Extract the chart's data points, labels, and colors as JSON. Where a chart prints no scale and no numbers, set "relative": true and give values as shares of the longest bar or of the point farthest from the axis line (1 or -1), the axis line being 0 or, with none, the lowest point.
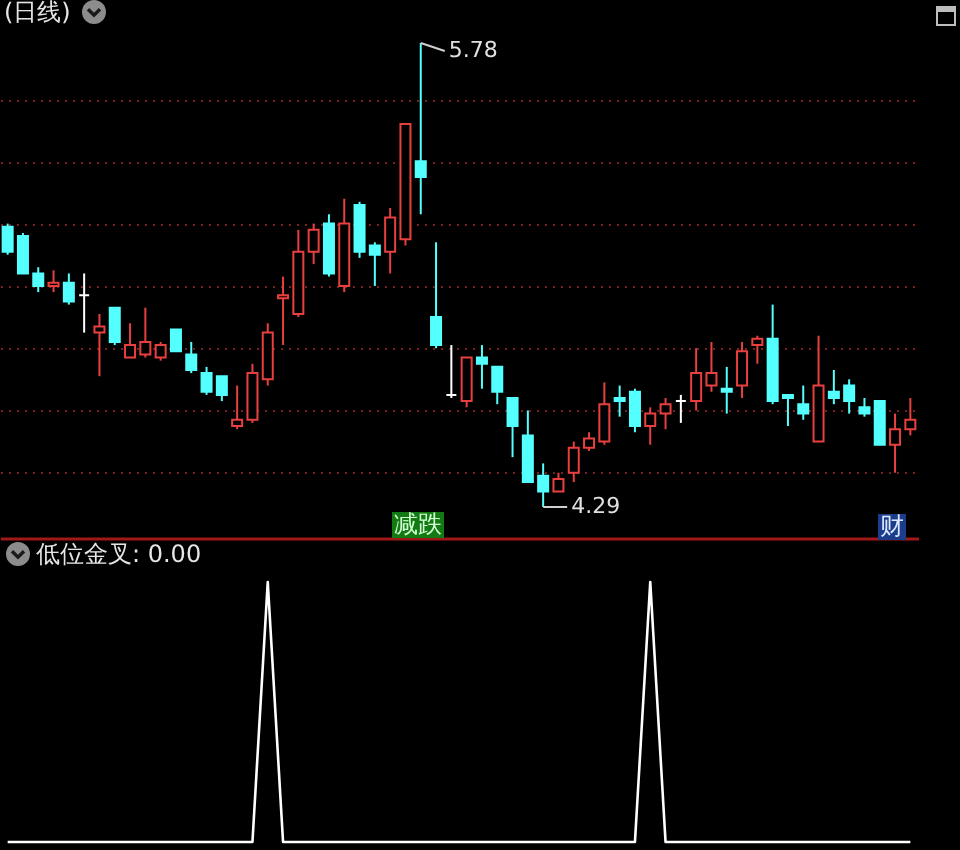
{
  "chart_data": [
    {
      "type": "candlestick",
      "title": "(日线)",
      "categories": [
        null,
        null,
        null,
        null,
        null,
        null,
        null,
        null,
        null,
        null,
        null,
        null,
        null,
        null,
        null,
        null,
        null,
        null,
        null,
        null,
        null,
        null,
        null,
        null,
        null,
        null,
        null,
        null,
        null,
        null,
        null,
        null,
        null,
        null,
        null,
        null,
        null,
        null,
        null,
        null,
        null,
        null,
        null,
        null,
        null,
        null,
        null,
        null,
        null,
        null,
        null,
        null,
        null,
        null,
        null,
        null,
        null,
        null,
        null,
        null
      ],
      "ohlc": [
        [
          5.19,
          5.2,
          5.1,
          5.11
        ],
        [
          5.16,
          5.17,
          5.04,
          5.04
        ],
        [
          5.04,
          5.06,
          4.98,
          5.0
        ],
        [
          5.0,
          5.05,
          4.98,
          5.01
        ],
        [
          5.01,
          5.04,
          4.94,
          4.95
        ],
        [
          4.97,
          5.04,
          4.85,
          4.97
        ],
        [
          4.85,
          4.91,
          4.71,
          4.87
        ],
        [
          4.93,
          4.93,
          4.81,
          4.82
        ],
        [
          4.77,
          4.88,
          4.77,
          4.81
        ],
        [
          4.78,
          4.93,
          4.77,
          4.82
        ],
        [
          4.77,
          4.82,
          4.76,
          4.81
        ],
        [
          4.86,
          4.86,
          4.79,
          4.79
        ],
        [
          4.78,
          4.82,
          4.72,
          4.73
        ],
        [
          4.72,
          4.74,
          4.65,
          4.66
        ],
        [
          4.71,
          4.71,
          4.63,
          4.65
        ],
        [
          4.55,
          4.68,
          4.54,
          4.57
        ],
        [
          4.57,
          4.75,
          4.56,
          4.72
        ],
        [
          4.7,
          4.88,
          4.68,
          4.85
        ],
        [
          4.96,
          5.03,
          4.81,
          4.97
        ],
        [
          4.91,
          5.18,
          4.9,
          5.11
        ],
        [
          5.11,
          5.2,
          5.07,
          5.18
        ],
        [
          5.2,
          5.23,
          5.03,
          5.04
        ],
        [
          5.0,
          5.28,
          4.98,
          5.2
        ],
        [
          5.26,
          5.27,
          5.09,
          5.11
        ],
        [
          5.13,
          5.14,
          5.0,
          5.1
        ],
        [
          5.11,
          5.25,
          5.04,
          5.22
        ],
        [
          5.15,
          5.52,
          5.13,
          5.52
        ],
        [
          5.4,
          5.78,
          5.23,
          5.35
        ],
        [
          4.9,
          5.14,
          4.8,
          4.81
        ],
        [
          4.65,
          4.81,
          4.64,
          4.65
        ],
        [
          4.63,
          4.77,
          4.61,
          4.77
        ],
        [
          4.77,
          4.81,
          4.67,
          4.75
        ],
        [
          4.74,
          4.74,
          4.62,
          4.66
        ],
        [
          4.64,
          4.64,
          4.45,
          4.55
        ],
        [
          4.52,
          4.6,
          4.37,
          4.37
        ],
        [
          4.39,
          4.43,
          4.29,
          4.34
        ],
        [
          4.34,
          4.4,
          4.34,
          4.38
        ],
        [
          4.4,
          4.5,
          4.37,
          4.48
        ],
        [
          4.48,
          4.53,
          4.47,
          4.51
        ],
        [
          4.5,
          4.69,
          4.49,
          4.62
        ],
        [
          4.64,
          4.68,
          4.58,
          4.63
        ],
        [
          4.66,
          4.67,
          4.53,
          4.55
        ],
        [
          4.55,
          4.61,
          4.49,
          4.59
        ],
        [
          4.59,
          4.64,
          4.54,
          4.62
        ],
        [
          4.63,
          4.65,
          4.56,
          4.63
        ],
        [
          4.63,
          4.8,
          4.6,
          4.72
        ],
        [
          4.68,
          4.82,
          4.66,
          4.72
        ],
        [
          4.67,
          4.74,
          4.59,
          4.66
        ],
        [
          4.68,
          4.82,
          4.64,
          4.79
        ],
        [
          4.81,
          4.84,
          4.75,
          4.83
        ],
        [
          4.83,
          4.94,
          4.62,
          4.63
        ],
        [
          4.65,
          4.65,
          4.55,
          4.64
        ],
        [
          4.62,
          4.68,
          4.57,
          4.59
        ],
        [
          4.5,
          4.84,
          4.5,
          4.68
        ],
        [
          4.66,
          4.73,
          4.62,
          4.64
        ],
        [
          4.68,
          4.7,
          4.59,
          4.63
        ],
        [
          4.61,
          4.64,
          4.58,
          4.59
        ],
        [
          4.63,
          4.63,
          4.49,
          4.49
        ],
        [
          4.49,
          4.59,
          4.4,
          4.54
        ],
        [
          4.54,
          4.64,
          4.52,
          4.57
        ]
      ],
      "colors": [
        "#54ffff",
        "#54ffff",
        "#54ffff",
        "#e8403f",
        "#54ffff",
        "#ffffff",
        "#e8403f",
        "#54ffff",
        "#e8403f",
        "#e8403f",
        "#e8403f",
        "#54ffff",
        "#54ffff",
        "#54ffff",
        "#54ffff",
        "#e8403f",
        "#e8403f",
        "#e8403f",
        "#e8403f",
        "#e8403f",
        "#e8403f",
        "#54ffff",
        "#e8403f",
        "#54ffff",
        "#54ffff",
        "#e8403f",
        "#e8403f",
        "#54ffff",
        "#54ffff",
        "#ffffff",
        "#e8403f",
        "#54ffff",
        "#54ffff",
        "#54ffff",
        "#54ffff",
        "#54ffff",
        "#e8403f",
        "#e8403f",
        "#e8403f",
        "#e8403f",
        "#54ffff",
        "#54ffff",
        "#e8403f",
        "#e8403f",
        "#ffffff",
        "#e8403f",
        "#e8403f",
        "#54ffff",
        "#e8403f",
        "#e8403f",
        "#54ffff",
        "#54ffff",
        "#54ffff",
        "#e8403f",
        "#54ffff",
        "#54ffff",
        "#54ffff",
        "#54ffff",
        "#e8403f",
        "#e8403f"
      ],
      "yticks": [
        {
          "value": 4.4,
          "label": null
        },
        {
          "value": 4.6,
          "label": null
        },
        {
          "value": 4.8,
          "label": null
        },
        {
          "value": 5.0,
          "label": null
        },
        {
          "value": 5.2,
          "label": null
        },
        {
          "value": 5.4,
          "label": null
        },
        {
          "value": 5.6,
          "label": null
        }
      ],
      "grid": "y",
      "tick_labels": false,
      "annotations": [
        "5.78",
        "4.29",
        "减跌",
        "财"
      ]
    },
    {
      "type": "line",
      "title": "低位金叉: 0.00",
      "categories": [
        null,
        null,
        null,
        null,
        null,
        null,
        null,
        null,
        null,
        null,
        null,
        null,
        null,
        null,
        null,
        null,
        null,
        null,
        null,
        null,
        null,
        null,
        null,
        null,
        null,
        null,
        null,
        null,
        null,
        null,
        null,
        null,
        null,
        null,
        null,
        null,
        null,
        null,
        null,
        null,
        null,
        null,
        null,
        null,
        null,
        null,
        null,
        null,
        null,
        null,
        null,
        null,
        null,
        null,
        null,
        null,
        null,
        null,
        null,
        null
      ],
      "relative": true,
      "series": [
        {
          "color": "#ffffff",
          "values": [
            0,
            0,
            0,
            0,
            0,
            0,
            0,
            0,
            0,
            0,
            0,
            0,
            0,
            0,
            0,
            0,
            0,
            1,
            0,
            0,
            0,
            0,
            0,
            0,
            0,
            0,
            0,
            0,
            0,
            0,
            0,
            0,
            0,
            0,
            0,
            0,
            0,
            0,
            0,
            0,
            0,
            0,
            1,
            0,
            0,
            0,
            0,
            0,
            0,
            0,
            0,
            0,
            0,
            0,
            0,
            0,
            0,
            0,
            0,
            0
          ]
        }
      ],
      "tick_labels": false
    }
  ]
}
